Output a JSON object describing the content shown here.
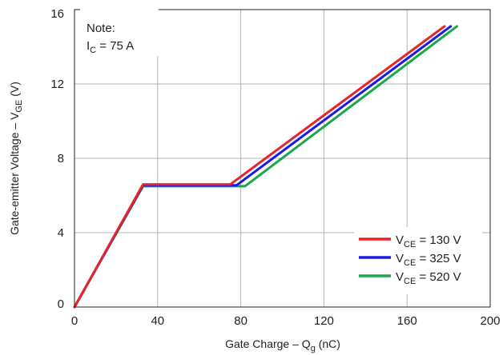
{
  "chart_data": {
    "type": "line",
    "xlabel": {
      "main": "Gate Charge – Q",
      "sub": "g",
      "post": " (nC)"
    },
    "ylabel": {
      "main": "Gate-emitter Voltage – V",
      "sub": "GE",
      "post": " (V)"
    },
    "xlim": [
      0,
      200
    ],
    "ylim": [
      0,
      16
    ],
    "xticks": [
      0,
      40,
      80,
      120,
      160,
      200
    ],
    "yticks": [
      0,
      4,
      8,
      12,
      16
    ],
    "grid": true,
    "legend_position": "bottom-right",
    "annotation": {
      "line1": "Note:",
      "line2_main": "I",
      "line2_sub": "C",
      "line2_post": " = 75 A"
    },
    "series": [
      {
        "label_main": "V",
        "label_sub": "CE",
        "label_post": " = 130 V",
        "color": "#e8232a",
        "x": [
          0,
          33,
          75,
          178
        ],
        "y": [
          0,
          6.6,
          6.6,
          15.1
        ]
      },
      {
        "label_main": "V",
        "label_sub": "CE",
        "label_post": " = 325 V",
        "color": "#1a1ae6",
        "x": [
          0,
          33,
          78,
          181
        ],
        "y": [
          0,
          6.55,
          6.55,
          15.1
        ]
      },
      {
        "label_main": "V",
        "label_sub": "CE",
        "label_post": " = 520 V",
        "color": "#1aa64a",
        "x": [
          0,
          33,
          82,
          184
        ],
        "y": [
          0,
          6.5,
          6.5,
          15.1
        ]
      }
    ]
  }
}
